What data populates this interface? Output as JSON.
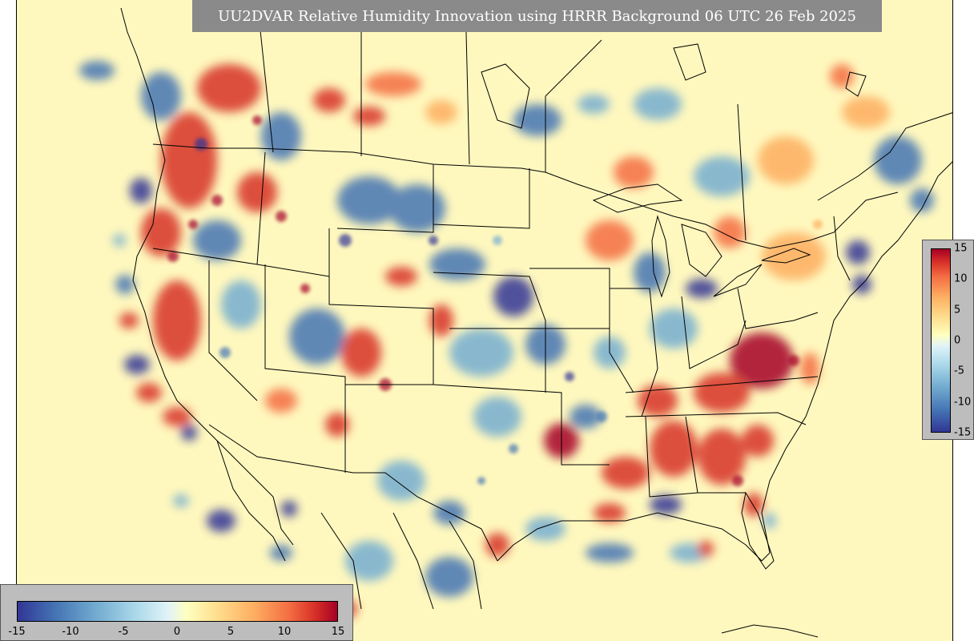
{
  "title": "UU2DVAR Relative Humidity Innovation using HRRR Background 06 UTC 26 Feb 2025",
  "colorbar": {
    "ticks": [
      "15",
      "10",
      "5",
      "0",
      "-5",
      "-10",
      "-15"
    ],
    "ticks_horizontal": [
      "-15",
      "-10",
      "-5",
      "0",
      "5",
      "10",
      "15"
    ],
    "range": [
      -15,
      15
    ],
    "colormap": [
      "#313695",
      "#4575b4",
      "#74add1",
      "#abd9e9",
      "#e0f3f8",
      "#ffffbf",
      "#fee090",
      "#fdae61",
      "#f46d43",
      "#d73027",
      "#a50026"
    ]
  },
  "map": {
    "background_color": "#fff8be",
    "line_color": "#000000"
  }
}
